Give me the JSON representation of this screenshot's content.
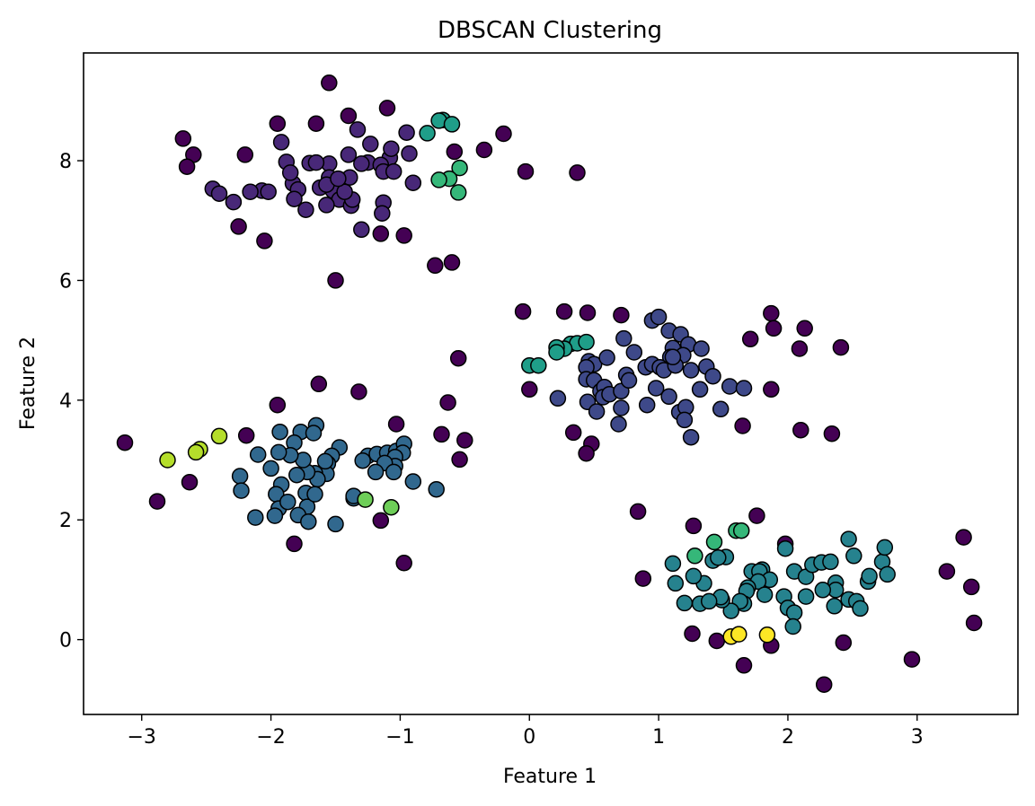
{
  "chart_data": {
    "type": "scatter",
    "title": "DBSCAN Clustering",
    "xlabel": "Feature 1",
    "ylabel": "Feature 2",
    "xlim": [
      -3.45,
      3.78
    ],
    "ylim": [
      -1.25,
      9.8
    ],
    "xticks": [
      -3,
      -2,
      -1,
      0,
      1,
      2,
      3
    ],
    "yticks": [
      0,
      2,
      4,
      6,
      8
    ],
    "grid": false,
    "legend": "none",
    "marker_edge_color": "#000000",
    "colors": {
      "noise": "#440154",
      "c0": "#482878",
      "c1": "#3e4989",
      "c2": "#31688e",
      "c3": "#26828e",
      "c4": "#1f9e89",
      "c5": "#35b779",
      "c6": "#6ece58",
      "c7": "#b5de2b",
      "c8": "#fde725"
    },
    "series": [
      {
        "cluster": "noise",
        "points": [
          [
            -1.55,
            9.3
          ],
          [
            -1.95,
            8.62
          ],
          [
            -1.65,
            8.62
          ],
          [
            -1.4,
            8.75
          ],
          [
            -1.1,
            8.88
          ],
          [
            -2.68,
            8.37
          ],
          [
            -0.2,
            8.45
          ],
          [
            -0.35,
            8.18
          ],
          [
            -2.6,
            8.1
          ],
          [
            -2.2,
            8.1
          ],
          [
            -0.58,
            8.15
          ],
          [
            -2.65,
            7.9
          ],
          [
            -0.03,
            7.82
          ],
          [
            0.37,
            7.8
          ],
          [
            -2.05,
            6.66
          ],
          [
            -2.25,
            6.9
          ],
          [
            -1.15,
            6.78
          ],
          [
            -0.97,
            6.75
          ],
          [
            -0.73,
            6.25
          ],
          [
            -0.6,
            6.3
          ],
          [
            -1.5,
            6.0
          ],
          [
            -0.05,
            5.48
          ],
          [
            0.27,
            5.48
          ],
          [
            0.45,
            5.46
          ],
          [
            0.71,
            5.42
          ],
          [
            1.87,
            5.45
          ],
          [
            1.89,
            5.2
          ],
          [
            2.13,
            5.2
          ],
          [
            1.71,
            5.02
          ],
          [
            2.09,
            4.86
          ],
          [
            2.41,
            4.88
          ],
          [
            0.0,
            4.18
          ],
          [
            -1.63,
            4.27
          ],
          [
            -1.95,
            3.92
          ],
          [
            -1.32,
            4.14
          ],
          [
            -0.63,
            3.96
          ],
          [
            -0.55,
            4.7
          ],
          [
            -1.03,
            3.6
          ],
          [
            -0.68,
            3.43
          ],
          [
            -0.5,
            3.33
          ],
          [
            -0.54,
            3.01
          ],
          [
            -2.19,
            3.41
          ],
          [
            -3.13,
            3.29
          ],
          [
            -2.63,
            2.63
          ],
          [
            -2.88,
            2.31
          ],
          [
            -1.15,
            1.99
          ],
          [
            -1.82,
            1.6
          ],
          [
            -0.97,
            1.28
          ],
          [
            0.34,
            3.46
          ],
          [
            0.48,
            3.27
          ],
          [
            0.44,
            3.11
          ],
          [
            1.65,
            3.57
          ],
          [
            2.1,
            3.5
          ],
          [
            2.34,
            3.44
          ],
          [
            1.87,
            4.18
          ],
          [
            0.84,
            2.14
          ],
          [
            1.27,
            1.9
          ],
          [
            1.76,
            2.07
          ],
          [
            1.98,
            1.6
          ],
          [
            0.88,
            1.02
          ],
          [
            1.26,
            0.1
          ],
          [
            1.45,
            -0.02
          ],
          [
            1.66,
            -0.43
          ],
          [
            1.87,
            -0.1
          ],
          [
            2.43,
            -0.05
          ],
          [
            2.28,
            -0.75
          ],
          [
            2.96,
            -0.33
          ],
          [
            3.23,
            1.14
          ],
          [
            3.36,
            1.71
          ],
          [
            3.42,
            0.88
          ],
          [
            3.44,
            0.28
          ]
        ]
      },
      {
        "cluster": "c0",
        "points": [
          [
            -1.08,
            8.05
          ],
          [
            -1.07,
            8.2
          ],
          [
            -1.23,
            8.28
          ],
          [
            -0.95,
            8.47
          ],
          [
            -1.33,
            8.52
          ],
          [
            -1.92,
            8.31
          ],
          [
            -1.55,
            7.95
          ],
          [
            -1.7,
            7.96
          ],
          [
            -1.65,
            7.97
          ],
          [
            -1.88,
            7.98
          ],
          [
            -1.25,
            7.97
          ],
          [
            -1.4,
            8.1
          ],
          [
            -1.15,
            7.93
          ],
          [
            -1.13,
            7.82
          ],
          [
            -1.05,
            7.82
          ],
          [
            -0.93,
            8.12
          ],
          [
            -1.52,
            7.5
          ],
          [
            -1.55,
            7.72
          ],
          [
            -1.83,
            7.62
          ],
          [
            -1.85,
            7.8
          ],
          [
            -1.62,
            7.55
          ],
          [
            -1.57,
            7.6
          ],
          [
            -1.79,
            7.52
          ],
          [
            -2.07,
            7.5
          ],
          [
            -2.16,
            7.48
          ],
          [
            -2.02,
            7.48
          ],
          [
            -2.45,
            7.53
          ],
          [
            -2.4,
            7.45
          ],
          [
            -2.29,
            7.31
          ],
          [
            -1.47,
            7.35
          ],
          [
            -1.38,
            7.25
          ],
          [
            -1.37,
            7.35
          ],
          [
            -1.39,
            7.72
          ],
          [
            -1.57,
            7.26
          ],
          [
            -1.82,
            7.36
          ],
          [
            -1.73,
            7.18
          ],
          [
            -1.13,
            7.3
          ],
          [
            -1.14,
            7.12
          ],
          [
            -1.3,
            6.85
          ],
          [
            -0.9,
            7.63
          ],
          [
            -1.43,
            7.48
          ],
          [
            -1.3,
            7.95
          ],
          [
            -1.48,
            7.7
          ]
        ]
      },
      {
        "cluster": "c1",
        "points": [
          [
            0.95,
            5.33
          ],
          [
            1.0,
            5.39
          ],
          [
            1.08,
            5.16
          ],
          [
            1.17,
            5.1
          ],
          [
            1.23,
            4.93
          ],
          [
            0.73,
            5.03
          ],
          [
            0.81,
            4.8
          ],
          [
            1.11,
            4.87
          ],
          [
            1.09,
            4.72
          ],
          [
            1.19,
            4.75
          ],
          [
            1.33,
            4.86
          ],
          [
            0.46,
            4.65
          ],
          [
            0.5,
            4.6
          ],
          [
            0.6,
            4.71
          ],
          [
            0.44,
            4.55
          ],
          [
            0.44,
            4.35
          ],
          [
            0.5,
            4.33
          ],
          [
            0.55,
            4.15
          ],
          [
            0.58,
            4.22
          ],
          [
            0.57,
            4.05
          ],
          [
            0.62,
            4.1
          ],
          [
            0.45,
            3.97
          ],
          [
            0.52,
            3.81
          ],
          [
            0.71,
            4.15
          ],
          [
            0.75,
            4.42
          ],
          [
            0.77,
            4.33
          ],
          [
            0.69,
            3.6
          ],
          [
            0.71,
            3.87
          ],
          [
            0.9,
            4.55
          ],
          [
            0.95,
            4.6
          ],
          [
            1.01,
            4.55
          ],
          [
            1.04,
            4.5
          ],
          [
            1.13,
            4.58
          ],
          [
            1.11,
            4.72
          ],
          [
            1.25,
            4.5
          ],
          [
            1.37,
            4.56
          ],
          [
            1.42,
            4.4
          ],
          [
            1.55,
            4.23
          ],
          [
            1.66,
            4.2
          ],
          [
            0.98,
            4.2
          ],
          [
            1.08,
            4.06
          ],
          [
            1.16,
            3.8
          ],
          [
            1.21,
            3.88
          ],
          [
            1.2,
            3.67
          ],
          [
            1.25,
            3.38
          ],
          [
            1.32,
            4.18
          ],
          [
            1.48,
            3.85
          ],
          [
            0.22,
            4.03
          ],
          [
            0.91,
            3.92
          ]
        ]
      },
      {
        "cluster": "c2",
        "points": [
          [
            -1.93,
            3.47
          ],
          [
            -1.77,
            3.47
          ],
          [
            -1.65,
            3.58
          ],
          [
            -1.67,
            3.45
          ],
          [
            -1.47,
            3.21
          ],
          [
            -1.53,
            3.07
          ],
          [
            -1.25,
            3.07
          ],
          [
            -1.18,
            3.1
          ],
          [
            -1.1,
            3.12
          ],
          [
            -1.03,
            3.15
          ],
          [
            -0.97,
            3.27
          ],
          [
            -0.98,
            3.12
          ],
          [
            -1.04,
            3.05
          ],
          [
            -1.04,
            2.9
          ],
          [
            -1.12,
            2.95
          ],
          [
            -1.19,
            2.8
          ],
          [
            -1.05,
            2.8
          ],
          [
            -1.29,
            2.99
          ],
          [
            -1.56,
            2.94
          ],
          [
            -1.57,
            2.77
          ],
          [
            -1.58,
            2.98
          ],
          [
            -1.66,
            2.78
          ],
          [
            -1.64,
            2.68
          ],
          [
            -1.72,
            2.8
          ],
          [
            -1.75,
            3.0
          ],
          [
            -1.8,
            2.75
          ],
          [
            -1.82,
            3.29
          ],
          [
            -1.85,
            3.08
          ],
          [
            -1.94,
            3.13
          ],
          [
            -2.1,
            3.09
          ],
          [
            -2.0,
            2.86
          ],
          [
            -1.92,
            2.59
          ],
          [
            -1.96,
            2.43
          ],
          [
            -2.24,
            2.73
          ],
          [
            -2.23,
            2.49
          ],
          [
            -1.94,
            2.19
          ],
          [
            -1.97,
            2.07
          ],
          [
            -1.87,
            2.3
          ],
          [
            -1.73,
            2.45
          ],
          [
            -1.72,
            2.22
          ],
          [
            -1.66,
            2.43
          ],
          [
            -1.79,
            2.08
          ],
          [
            -1.71,
            1.97
          ],
          [
            -1.5,
            1.93
          ],
          [
            -1.36,
            2.36
          ],
          [
            -2.12,
            2.04
          ],
          [
            -0.9,
            2.64
          ],
          [
            -0.72,
            2.51
          ],
          [
            -1.36,
            2.4
          ]
        ]
      },
      {
        "cluster": "c3",
        "points": [
          [
            1.11,
            1.27
          ],
          [
            1.42,
            1.32
          ],
          [
            1.52,
            1.38
          ],
          [
            1.46,
            1.37
          ],
          [
            1.72,
            1.14
          ],
          [
            1.8,
            1.17
          ],
          [
            1.78,
            1.14
          ],
          [
            1.86,
            1.0
          ],
          [
            1.77,
            0.97
          ],
          [
            1.69,
            0.87
          ],
          [
            1.68,
            0.81
          ],
          [
            1.82,
            0.75
          ],
          [
            1.66,
            0.6
          ],
          [
            1.63,
            0.64
          ],
          [
            1.56,
            0.48
          ],
          [
            1.49,
            0.66
          ],
          [
            1.48,
            0.71
          ],
          [
            1.32,
            0.6
          ],
          [
            1.39,
            0.64
          ],
          [
            1.35,
            0.94
          ],
          [
            1.27,
            1.06
          ],
          [
            1.2,
            0.61
          ],
          [
            1.13,
            0.94
          ],
          [
            2.05,
            1.14
          ],
          [
            2.14,
            1.05
          ],
          [
            2.19,
            1.25
          ],
          [
            2.26,
            1.29
          ],
          [
            2.33,
            1.3
          ],
          [
            2.37,
            0.95
          ],
          [
            2.37,
            0.83
          ],
          [
            2.27,
            0.83
          ],
          [
            2.14,
            0.72
          ],
          [
            1.97,
            0.72
          ],
          [
            2.0,
            0.53
          ],
          [
            2.05,
            0.45
          ],
          [
            2.04,
            0.22
          ],
          [
            2.36,
            0.56
          ],
          [
            2.47,
            0.67
          ],
          [
            2.53,
            0.64
          ],
          [
            2.56,
            0.52
          ],
          [
            2.62,
            0.97
          ],
          [
            2.63,
            1.06
          ],
          [
            2.73,
            1.3
          ],
          [
            2.75,
            1.54
          ],
          [
            2.77,
            1.09
          ],
          [
            2.47,
            1.68
          ],
          [
            2.51,
            1.4
          ],
          [
            1.98,
            1.52
          ]
        ]
      },
      {
        "cluster": "c4",
        "points": [
          [
            -0.67,
            8.68
          ],
          [
            -0.7,
            8.67
          ],
          [
            -0.6,
            8.61
          ],
          [
            -0.79,
            8.46
          ],
          [
            0.32,
            4.94
          ],
          [
            0.37,
            4.95
          ],
          [
            0.44,
            4.97
          ],
          [
            0.27,
            4.86
          ],
          [
            0.21,
            4.88
          ],
          [
            0.21,
            4.8
          ],
          [
            0.0,
            4.58
          ],
          [
            0.07,
            4.58
          ]
        ]
      },
      {
        "cluster": "c5",
        "points": [
          [
            -0.54,
            7.88
          ],
          [
            -0.62,
            7.7
          ],
          [
            -0.7,
            7.68
          ],
          [
            -0.55,
            7.47
          ],
          [
            1.28,
            1.4
          ],
          [
            1.43,
            1.63
          ],
          [
            1.6,
            1.82
          ],
          [
            1.64,
            1.82
          ]
        ]
      },
      {
        "cluster": "c6",
        "points": [
          [
            -1.27,
            2.34
          ],
          [
            -1.07,
            2.21
          ]
        ]
      },
      {
        "cluster": "c7",
        "points": [
          [
            -2.8,
            3.0
          ],
          [
            -2.55,
            3.18
          ],
          [
            -2.58,
            3.13
          ],
          [
            -2.4,
            3.4
          ]
        ]
      },
      {
        "cluster": "c8",
        "points": [
          [
            1.56,
            0.05
          ],
          [
            1.62,
            0.09
          ],
          [
            1.84,
            0.08
          ]
        ]
      }
    ]
  }
}
